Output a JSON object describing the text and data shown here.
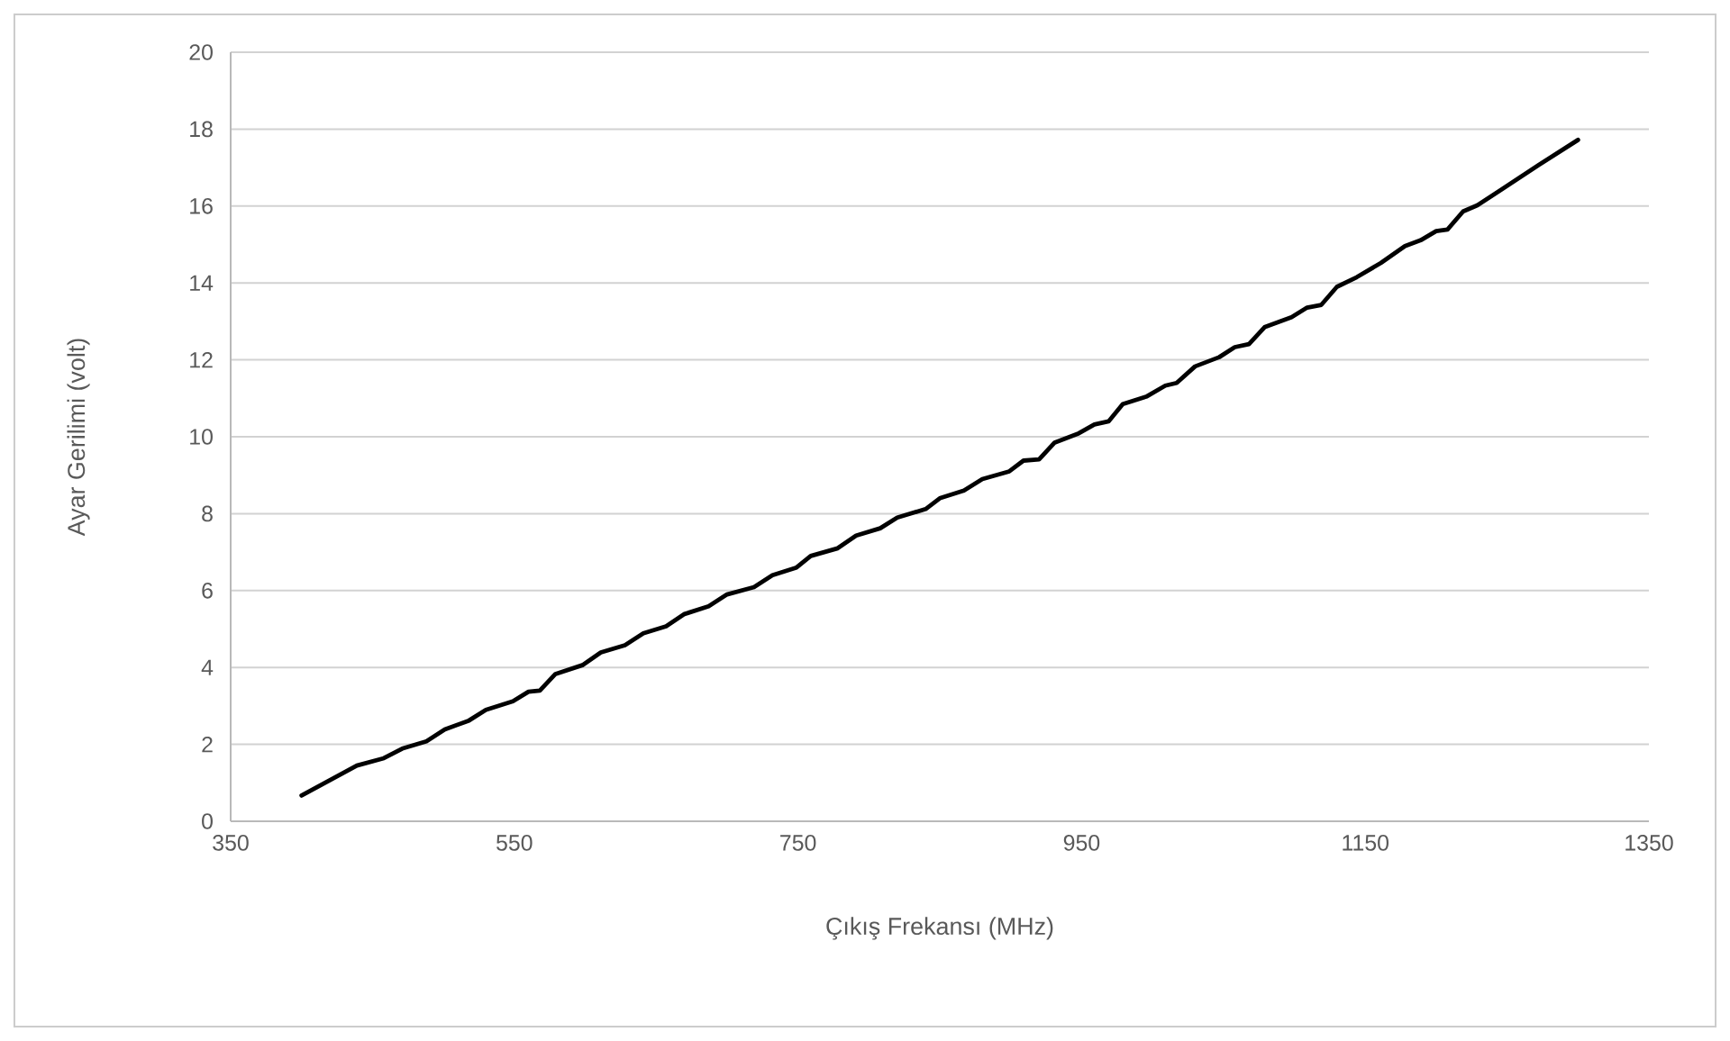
{
  "chart_data": {
    "type": "line",
    "xlabel": "Çıkış Frekansı (MHz)",
    "ylabel": "Ayar Gerilimi (volt)",
    "xlim": [
      350,
      1350
    ],
    "xticks": [
      350,
      550,
      750,
      950,
      1150,
      1350
    ],
    "ylim": [
      0,
      20
    ],
    "yticks": [
      0,
      2,
      4,
      6,
      8,
      10,
      12,
      14,
      16,
      18,
      20
    ],
    "grid": "y",
    "marker": "none",
    "line_style": "solid",
    "series": [
      {
        "color": "#000000",
        "x": [
          400,
          439,
          458,
          471,
          488,
          501,
          518,
          530,
          549,
          560,
          568,
          579,
          598,
          611,
          628,
          641,
          657,
          670,
          687,
          700,
          719,
          732,
          749,
          759,
          778,
          791,
          808,
          820,
          840,
          850,
          867,
          880,
          899,
          909,
          920,
          931,
          948,
          959,
          969,
          979,
          996,
          1009,
          1017,
          1030,
          1047,
          1058,
          1068,
          1079,
          1098,
          1109,
          1119,
          1130,
          1144,
          1161,
          1178,
          1189,
          1200,
          1208,
          1219,
          1229,
          1246,
          1272,
          1300
        ],
        "values": [
          0.67,
          1.45,
          1.64,
          1.89,
          2.08,
          2.39,
          2.62,
          2.9,
          3.12,
          3.37,
          3.4,
          3.83,
          4.06,
          4.39,
          4.58,
          4.89,
          5.07,
          5.39,
          5.59,
          5.9,
          6.09,
          6.4,
          6.6,
          6.9,
          7.1,
          7.43,
          7.62,
          7.9,
          8.12,
          8.4,
          8.6,
          8.9,
          9.1,
          9.38,
          9.41,
          9.85,
          10.09,
          10.32,
          10.4,
          10.85,
          11.05,
          11.33,
          11.4,
          11.83,
          12.07,
          12.33,
          12.41,
          12.85,
          13.11,
          13.36,
          13.43,
          13.9,
          14.15,
          14.52,
          14.96,
          15.11,
          15.35,
          15.39,
          15.86,
          16.02,
          16.43,
          17.06,
          17.72
        ]
      }
    ]
  }
}
